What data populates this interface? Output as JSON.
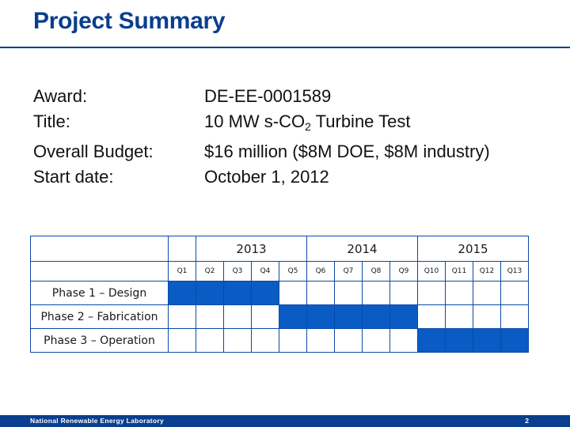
{
  "title": "Project Summary",
  "info": {
    "award_label": "Award:",
    "award_value": "DE-EE-0001589",
    "title_label": "Title:",
    "title_value_pre": "10 MW s-CO",
    "title_value_sub": "2",
    "title_value_post": " Turbine Test",
    "budget_label": "Overall Budget:",
    "budget_value": "$16 million ($8M DOE, $8M industry)",
    "start_label": "Start date:",
    "start_value": "October 1, 2012"
  },
  "schedule": {
    "years": [
      "2013",
      "2014",
      "2015"
    ],
    "quarters": [
      "Q1",
      "Q2",
      "Q3",
      "Q4",
      "Q5",
      "Q6",
      "Q7",
      "Q8",
      "Q9",
      "Q10",
      "Q11",
      "Q12",
      "Q13"
    ],
    "phases": [
      {
        "label": "Phase 1 – Design",
        "quarters": [
          "Q1",
          "Q2",
          "Q3",
          "Q4"
        ]
      },
      {
        "label": "Phase 2 – Fabrication",
        "quarters": [
          "Q5",
          "Q6",
          "Q7",
          "Q8",
          "Q9"
        ]
      },
      {
        "label": "Phase 3 – Operation",
        "quarters": [
          "Q10",
          "Q11",
          "Q12",
          "Q13"
        ]
      }
    ],
    "fill_color": "#0a5bc4"
  },
  "footer": {
    "lab": "National Renewable Energy Laboratory",
    "page": "2"
  }
}
